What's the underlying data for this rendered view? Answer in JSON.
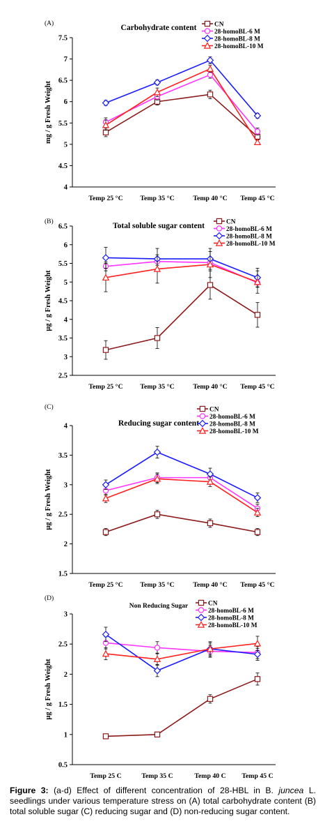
{
  "legend_series": [
    "CN",
    "28-homoBL-6 M",
    "28-homoBL-8 M",
    "28-homoBL-10 M"
  ],
  "colors": {
    "CN": "#8b1a1a",
    "BL6": "#ff33ff",
    "BL8": "#1a1aff",
    "BL10": "#ff2020",
    "axis": "#000000"
  },
  "chart_data": [
    {
      "type": "line",
      "panel": "(A)",
      "title": "Carbohydrate content",
      "ylabel": "mg / g Fresh Weight",
      "xlabel": "",
      "categories": [
        "Temp 25 °C",
        "Temp 35 °C",
        "Temp 40 °C",
        "Temp 45 °C"
      ],
      "ylim": [
        4,
        7.5
      ],
      "yticks": [
        "4",
        "4.5",
        "5",
        "5.5",
        "6",
        "6.5",
        "7",
        "7.5"
      ],
      "grid": false,
      "legend_position": "top-right",
      "series": [
        {
          "name": "CN",
          "values": [
            5.28,
            6.0,
            6.17,
            5.18
          ],
          "errors": [
            0.1,
            0.08,
            0.1,
            0.08
          ]
        },
        {
          "name": "28-homoBL-6 M",
          "values": [
            5.52,
            6.12,
            6.63,
            5.3
          ],
          "errors": [
            0.1,
            0.08,
            0.08,
            0.08
          ]
        },
        {
          "name": "28-homoBL-8 M",
          "values": [
            5.97,
            6.45,
            6.97,
            5.67
          ],
          "errors": [
            0.06,
            0.06,
            0.08,
            0.06
          ]
        },
        {
          "name": "28-homoBL-10 M",
          "values": [
            5.45,
            6.22,
            6.77,
            5.05
          ],
          "errors": [
            0.12,
            0.1,
            0.08,
            0.06
          ]
        }
      ]
    },
    {
      "type": "line",
      "panel": "(B)",
      "title": "Total soluble sugar content",
      "ylabel": "µg / g Fresh Weight",
      "xlabel": "",
      "categories": [
        "Temp 25 °C",
        "Temp 35 °C",
        "Temp 40 °C",
        "Temp 45 °C"
      ],
      "ylim": [
        2.5,
        6.5
      ],
      "yticks": [
        "2.5",
        "3",
        "3.5",
        "4",
        "4.5",
        "5",
        "5.5",
        "6",
        "6.5"
      ],
      "grid": false,
      "legend_position": "top-right",
      "series": [
        {
          "name": "CN",
          "values": [
            3.18,
            3.5,
            4.92,
            4.12
          ],
          "errors": [
            0.25,
            0.28,
            0.38,
            0.33
          ]
        },
        {
          "name": "28-homoBL-6 M",
          "values": [
            5.42,
            5.55,
            5.52,
            4.98
          ],
          "errors": [
            0.12,
            0.1,
            0.1,
            0.12
          ]
        },
        {
          "name": "28-homoBL-8 M",
          "values": [
            5.65,
            5.62,
            5.62,
            5.12
          ],
          "errors": [
            0.28,
            0.28,
            0.28,
            0.25
          ]
        },
        {
          "name": "28-homoBL-10 M",
          "values": [
            5.12,
            5.35,
            5.47,
            5.0
          ],
          "errors": [
            0.38,
            0.38,
            0.35,
            0.3
          ]
        }
      ]
    },
    {
      "type": "line",
      "panel": "(C)",
      "title": "Reducing sugar content",
      "ylabel": "µg / g Fresh Weight",
      "xlabel": "",
      "categories": [
        "Temp 25 °C",
        "Temp 35 °C",
        "Temp 40 °C",
        "Temp 45 °C"
      ],
      "ylim": [
        1.5,
        4
      ],
      "yticks": [
        "1.5",
        "2",
        "2.5",
        "3",
        "3.5",
        "4"
      ],
      "grid": false,
      "legend_position": "top-right",
      "series": [
        {
          "name": "CN",
          "values": [
            2.2,
            2.5,
            2.35,
            2.2
          ],
          "errors": [
            0.06,
            0.07,
            0.07,
            0.06
          ]
        },
        {
          "name": "28-homoBL-6 M",
          "values": [
            2.9,
            3.12,
            3.12,
            2.6
          ],
          "errors": [
            0.08,
            0.08,
            0.08,
            0.07
          ]
        },
        {
          "name": "28-homoBL-8 M",
          "values": [
            3.0,
            3.55,
            3.18,
            2.78
          ],
          "errors": [
            0.08,
            0.1,
            0.1,
            0.08
          ]
        },
        {
          "name": "28-homoBL-10 M",
          "values": [
            2.77,
            3.1,
            3.05,
            2.53
          ],
          "errors": [
            0.07,
            0.08,
            0.08,
            0.07
          ]
        }
      ]
    },
    {
      "type": "line",
      "panel": "(D)",
      "title": "Non Reducing Sugar",
      "ylabel": "µg / g Fresh Weight",
      "xlabel": "",
      "categories": [
        "Temp 25 C",
        "Temp 35 C",
        "Temp 40 C",
        "Temp 45 C"
      ],
      "ylim": [
        0.5,
        3
      ],
      "yticks": [
        "0.5",
        "1",
        "1.5",
        "2",
        "2.5",
        "3"
      ],
      "grid": false,
      "legend_position": "top-right",
      "series": [
        {
          "name": "CN",
          "values": [
            0.97,
            1.0,
            1.59,
            1.92
          ],
          "errors": [
            0.04,
            0.04,
            0.07,
            0.1
          ]
        },
        {
          "name": "28-homoBL-6 M",
          "values": [
            2.52,
            2.44,
            2.38,
            2.36
          ],
          "errors": [
            0.1,
            0.1,
            0.1,
            0.1
          ]
        },
        {
          "name": "28-homoBL-8 M",
          "values": [
            2.66,
            2.06,
            2.42,
            2.33
          ],
          "errors": [
            0.12,
            0.1,
            0.1,
            0.1
          ]
        },
        {
          "name": "28-homoBL-10 M",
          "values": [
            2.34,
            2.25,
            2.42,
            2.51
          ],
          "errors": [
            0.1,
            0.1,
            0.12,
            0.12
          ]
        }
      ]
    }
  ],
  "caption": {
    "label": "Figure 3:",
    "part1": " (a-d) Effect of different concentration of 28-HBL in B. ",
    "species": "juncea",
    "part2": " L. seedlings under various temperature stress on (A) total carbohydrate content (B) total soluble sugar (C) reducing sugar and (D) non-reducing sugar content."
  }
}
